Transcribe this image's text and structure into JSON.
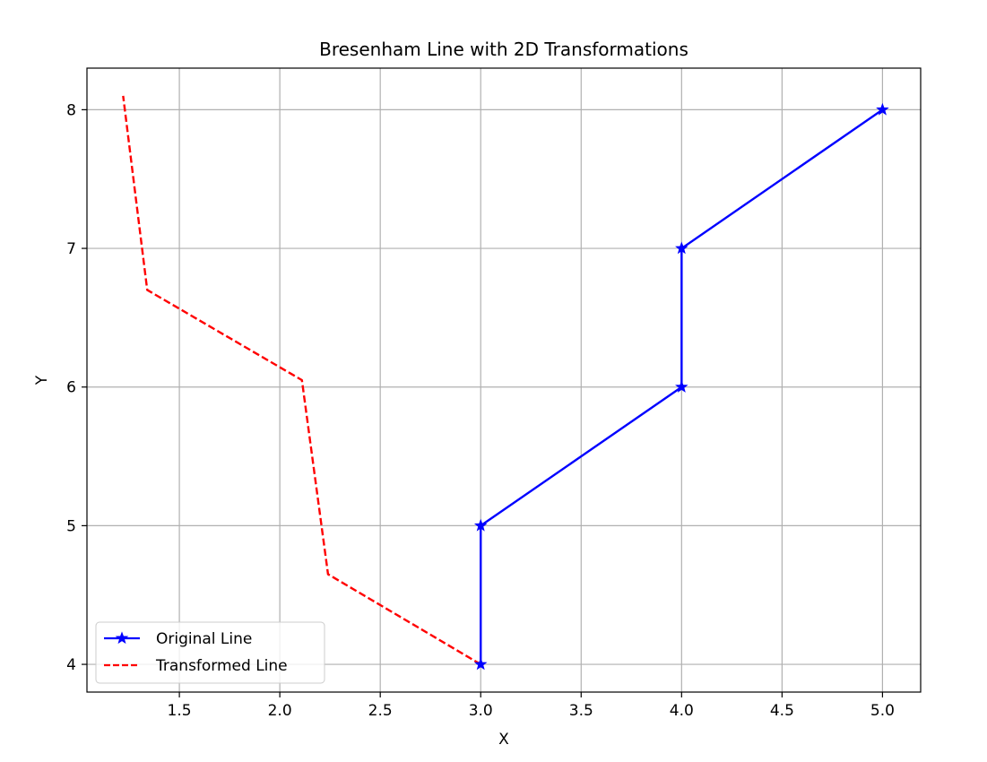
{
  "chart_data": {
    "type": "line",
    "title": "Bresenham Line with 2D Transformations",
    "xlabel": "X",
    "ylabel": "Y",
    "xlim": [
      1.04,
      5.19
    ],
    "ylim": [
      3.8,
      8.3
    ],
    "xticks": [
      1.5,
      2.0,
      2.5,
      3.0,
      3.5,
      4.0,
      4.5,
      5.0
    ],
    "xtick_labels": [
      "1.5",
      "2.0",
      "2.5",
      "3.0",
      "3.5",
      "4.0",
      "4.5",
      "5.0"
    ],
    "yticks": [
      4,
      5,
      6,
      7,
      8
    ],
    "ytick_labels": [
      "4",
      "5",
      "6",
      "7",
      "8"
    ],
    "grid": true,
    "legend_position": "lower-left",
    "series": [
      {
        "name": "Original Line",
        "color": "#0000ff",
        "linestyle": "solid",
        "marker": "star",
        "x": [
          3,
          3,
          4,
          4,
          5
        ],
        "y": [
          4,
          5,
          6,
          7,
          8
        ]
      },
      {
        "name": "Transformed Line",
        "color": "#ff0000",
        "linestyle": "dashed",
        "marker": "none",
        "x": [
          3.0,
          2.24,
          2.11,
          1.34,
          1.22
        ],
        "y": [
          4.0,
          4.65,
          6.05,
          6.7,
          8.1
        ]
      }
    ]
  }
}
